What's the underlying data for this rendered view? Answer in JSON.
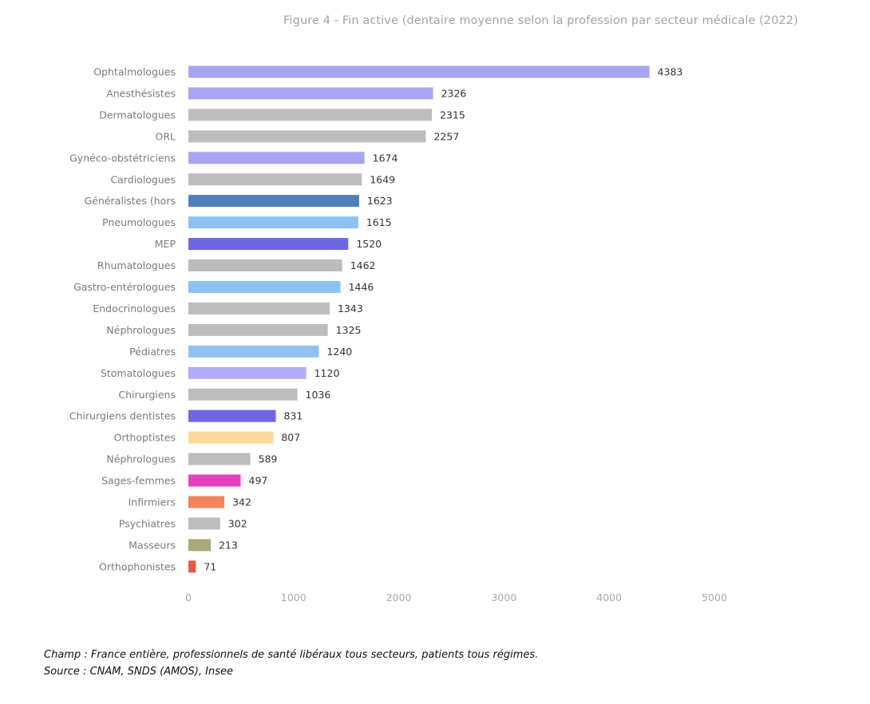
{
  "chart_data": {
    "type": "bar",
    "orientation": "horizontal",
    "title": "Figure 4 - Fin active (dentaire moyenne selon la profession par secteur médicale (2022)",
    "categories": [
      "Ophtalmologues",
      "Anesthésistes",
      "Dermatologues",
      "ORL",
      "Gynéco-obstétriciens",
      "Cardiologues",
      "Généralistes (hors",
      "Pneumologues",
      "MEP",
      "Rhumatologues",
      "Gastro-entérologues",
      "Endocrinologues",
      "Néphrologues",
      "Pédiatres",
      "Stomatologues",
      "Chirurgiens",
      "Chirurgiens dentistes",
      "Orthoptistes",
      "Néphrologues",
      "Sages-femmes",
      "Infirmiers",
      "Psychiatres",
      "Masseurs",
      "Orthophonistes"
    ],
    "values": [
      4383,
      2326,
      2315,
      2257,
      1674,
      1649,
      1623,
      1615,
      1520,
      1462,
      1446,
      1343,
      1325,
      1240,
      1120,
      1036,
      831,
      807,
      589,
      497,
      342,
      302,
      213,
      71
    ],
    "value_labels": [
      "4383",
      "2326",
      "2315",
      "2257",
      "1674",
      "1649",
      "1623",
      "1615",
      "1520",
      "1462",
      "1446",
      "1343",
      "1325",
      "1240",
      "1120",
      "1036",
      "831",
      "807",
      "589",
      "497",
      "342",
      "302",
      "213",
      "71"
    ],
    "colors": [
      "#a9a5f2",
      "#a9a5f2",
      "#bdbdbd",
      "#bdbdbd",
      "#a9a5f2",
      "#bdbdbd",
      "#4f7fb8",
      "#8fc1f5",
      "#6f66e3",
      "#bdbdbd",
      "#8fc1f5",
      "#bdbdbd",
      "#bdbdbd",
      "#8fc1f5",
      "#b2adf4",
      "#bdbdbd",
      "#6f66e3",
      "#fcd79a",
      "#bdbdbd",
      "#e43fbd",
      "#f5835e",
      "#bdbdbd",
      "#aba77a",
      "#e25b4a"
    ],
    "xlim": [
      0,
      5000
    ],
    "xticks": [
      "0",
      "1000",
      "2000",
      "3000",
      "4000",
      "5000"
    ],
    "grid": false,
    "legend": "none"
  },
  "notes": {
    "champ": "Champ : France entière, professionnels de santé libéraux tous secteurs, patients tous régimes.",
    "source": "Source : CNAM, SNDS (AMOS), Insee"
  }
}
